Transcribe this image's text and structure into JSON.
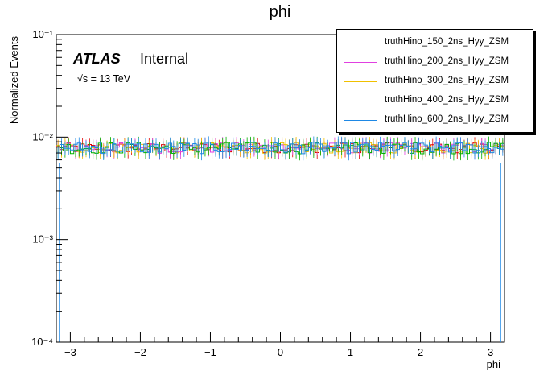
{
  "chart_data": {
    "type": "line",
    "title": "phi",
    "xlabel": "phi",
    "ylabel": "Normalized Events",
    "xlim": [
      -3.2,
      3.2
    ],
    "ylim": [
      0.0001,
      0.1
    ],
    "y_scale": "log",
    "x_ticks": [
      "−3",
      "−2",
      "−1",
      "0",
      "1",
      "2",
      "3"
    ],
    "y_ticks": [
      "10⁻⁴",
      "10⁻³",
      "10⁻²",
      "10⁻¹"
    ],
    "bins": 128,
    "series": [
      {
        "name": "truthHino_150_2ns_Hyy_ZSM",
        "color": "#e00000",
        "level": 0.0079,
        "spread": 0.11
      },
      {
        "name": "truthHino_200_2ns_Hyy_ZSM",
        "color": "#e040e0",
        "level": 0.0079,
        "spread": 0.12
      },
      {
        "name": "truthHino_300_2ns_Hyy_ZSM",
        "color": "#f0c000",
        "level": 0.0079,
        "spread": 0.12
      },
      {
        "name": "truthHino_400_2ns_Hyy_ZSM",
        "color": "#00b000",
        "level": 0.0079,
        "spread": 0.13
      },
      {
        "name": "truthHino_600_2ns_Hyy_ZSM",
        "color": "#1e88e5",
        "level": 0.0079,
        "spread": 0.13
      }
    ],
    "legend_position": "top-right",
    "grid": false
  },
  "labels": {
    "atlas": "ATLAS",
    "internal": "Internal",
    "energy": "√s = 13 TeV"
  }
}
